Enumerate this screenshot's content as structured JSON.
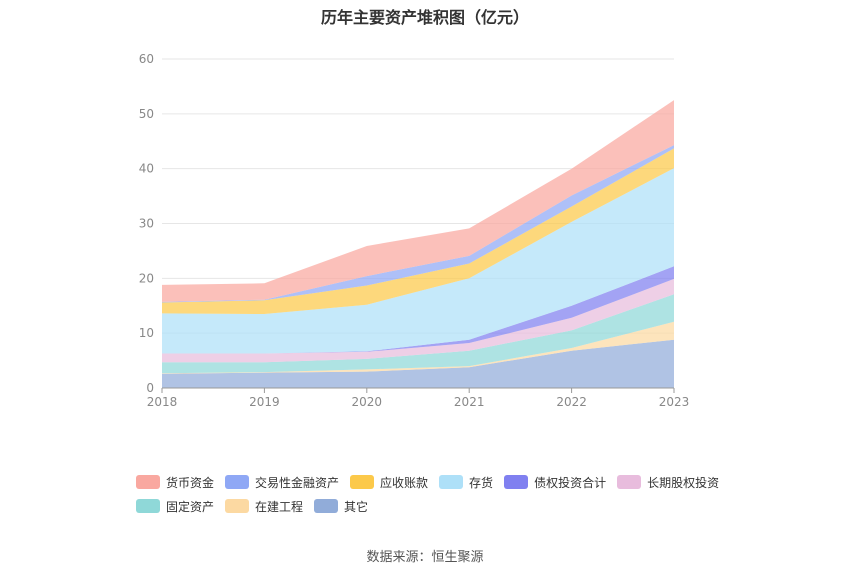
{
  "chart_data": {
    "type": "area",
    "stacked": true,
    "title": "历年主要资产堆积图（亿元）",
    "categories": [
      "2018",
      "2019",
      "2020",
      "2021",
      "2022",
      "2023"
    ],
    "ylim": [
      0,
      60
    ],
    "yticks": [
      0,
      10,
      20,
      30,
      40,
      50,
      60
    ],
    "grid": true,
    "legend_position": "bottom",
    "series": [
      {
        "name": "其它",
        "color": "#91acd9",
        "values": [
          2.6,
          2.8,
          3.0,
          3.8,
          6.8,
          8.8
        ]
      },
      {
        "name": "在建工程",
        "color": "#fcd9a2",
        "values": [
          0.1,
          0.1,
          0.4,
          0.2,
          0.5,
          3.3
        ]
      },
      {
        "name": "固定资产",
        "color": "#8fd8d8",
        "values": [
          2.0,
          1.8,
          1.9,
          2.8,
          3.2,
          5.0
        ]
      },
      {
        "name": "长期股权投资",
        "color": "#e8bcdd",
        "values": [
          1.6,
          1.6,
          1.3,
          1.4,
          2.3,
          2.8
        ]
      },
      {
        "name": "债权投资合计",
        "color": "#8080f0",
        "values": [
          0.0,
          0.0,
          0.1,
          0.6,
          2.2,
          2.3
        ]
      },
      {
        "name": "存货",
        "color": "#aee0f8",
        "values": [
          7.3,
          7.2,
          8.5,
          11.2,
          15.3,
          17.9
        ]
      },
      {
        "name": "应收账款",
        "color": "#fcc94a",
        "values": [
          2.0,
          2.5,
          3.5,
          2.7,
          2.8,
          3.6
        ]
      },
      {
        "name": "交易性金融资产",
        "color": "#8fa8f5",
        "values": [
          0.1,
          0.1,
          1.7,
          1.4,
          2.0,
          0.6
        ]
      },
      {
        "name": "货币资金",
        "color": "#f9a8a0",
        "values": [
          3.1,
          3.0,
          5.5,
          5.0,
          4.9,
          8.2
        ]
      }
    ],
    "legend_rows": [
      [
        "货币资金",
        "交易性金融资产",
        "应收账款",
        "存货",
        "债权投资合计",
        "长期股权投资"
      ],
      [
        "固定资产",
        "在建工程",
        "其它"
      ]
    ],
    "source": "数据来源：恒生聚源"
  }
}
